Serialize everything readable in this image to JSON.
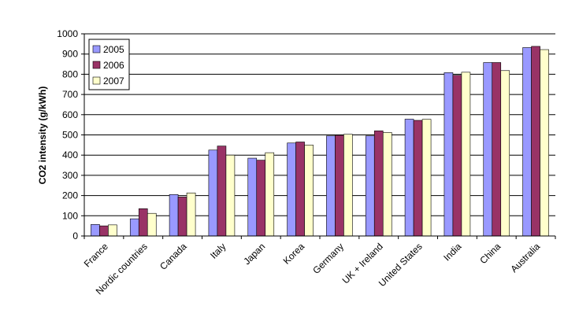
{
  "chart_data": {
    "type": "bar",
    "title": "",
    "xlabel": "",
    "ylabel": "CO2 intensity (g/kWh)",
    "ylim": [
      0,
      1000
    ],
    "yticks": [
      0,
      100,
      200,
      300,
      400,
      500,
      600,
      700,
      800,
      900,
      1000
    ],
    "grid": true,
    "legend_position": "top-left",
    "categories": [
      "France",
      "Nordic countries",
      "Canada",
      "Italy",
      "Japan",
      "Korea",
      "Germany",
      "UK + Ireland",
      "United States",
      "India",
      "China",
      "Australia"
    ],
    "series": [
      {
        "name": "2005",
        "color": "#9999ff",
        "values": [
          57,
          85,
          205,
          425,
          385,
          460,
          495,
          495,
          578,
          808,
          858,
          932
        ]
      },
      {
        "name": "2006",
        "color": "#993366",
        "values": [
          50,
          135,
          193,
          445,
          375,
          465,
          498,
          520,
          572,
          795,
          858,
          938
        ]
      },
      {
        "name": "2007",
        "color": "#ffffcc",
        "values": [
          55,
          112,
          213,
          400,
          412,
          450,
          503,
          512,
          577,
          810,
          818,
          922
        ]
      }
    ]
  }
}
